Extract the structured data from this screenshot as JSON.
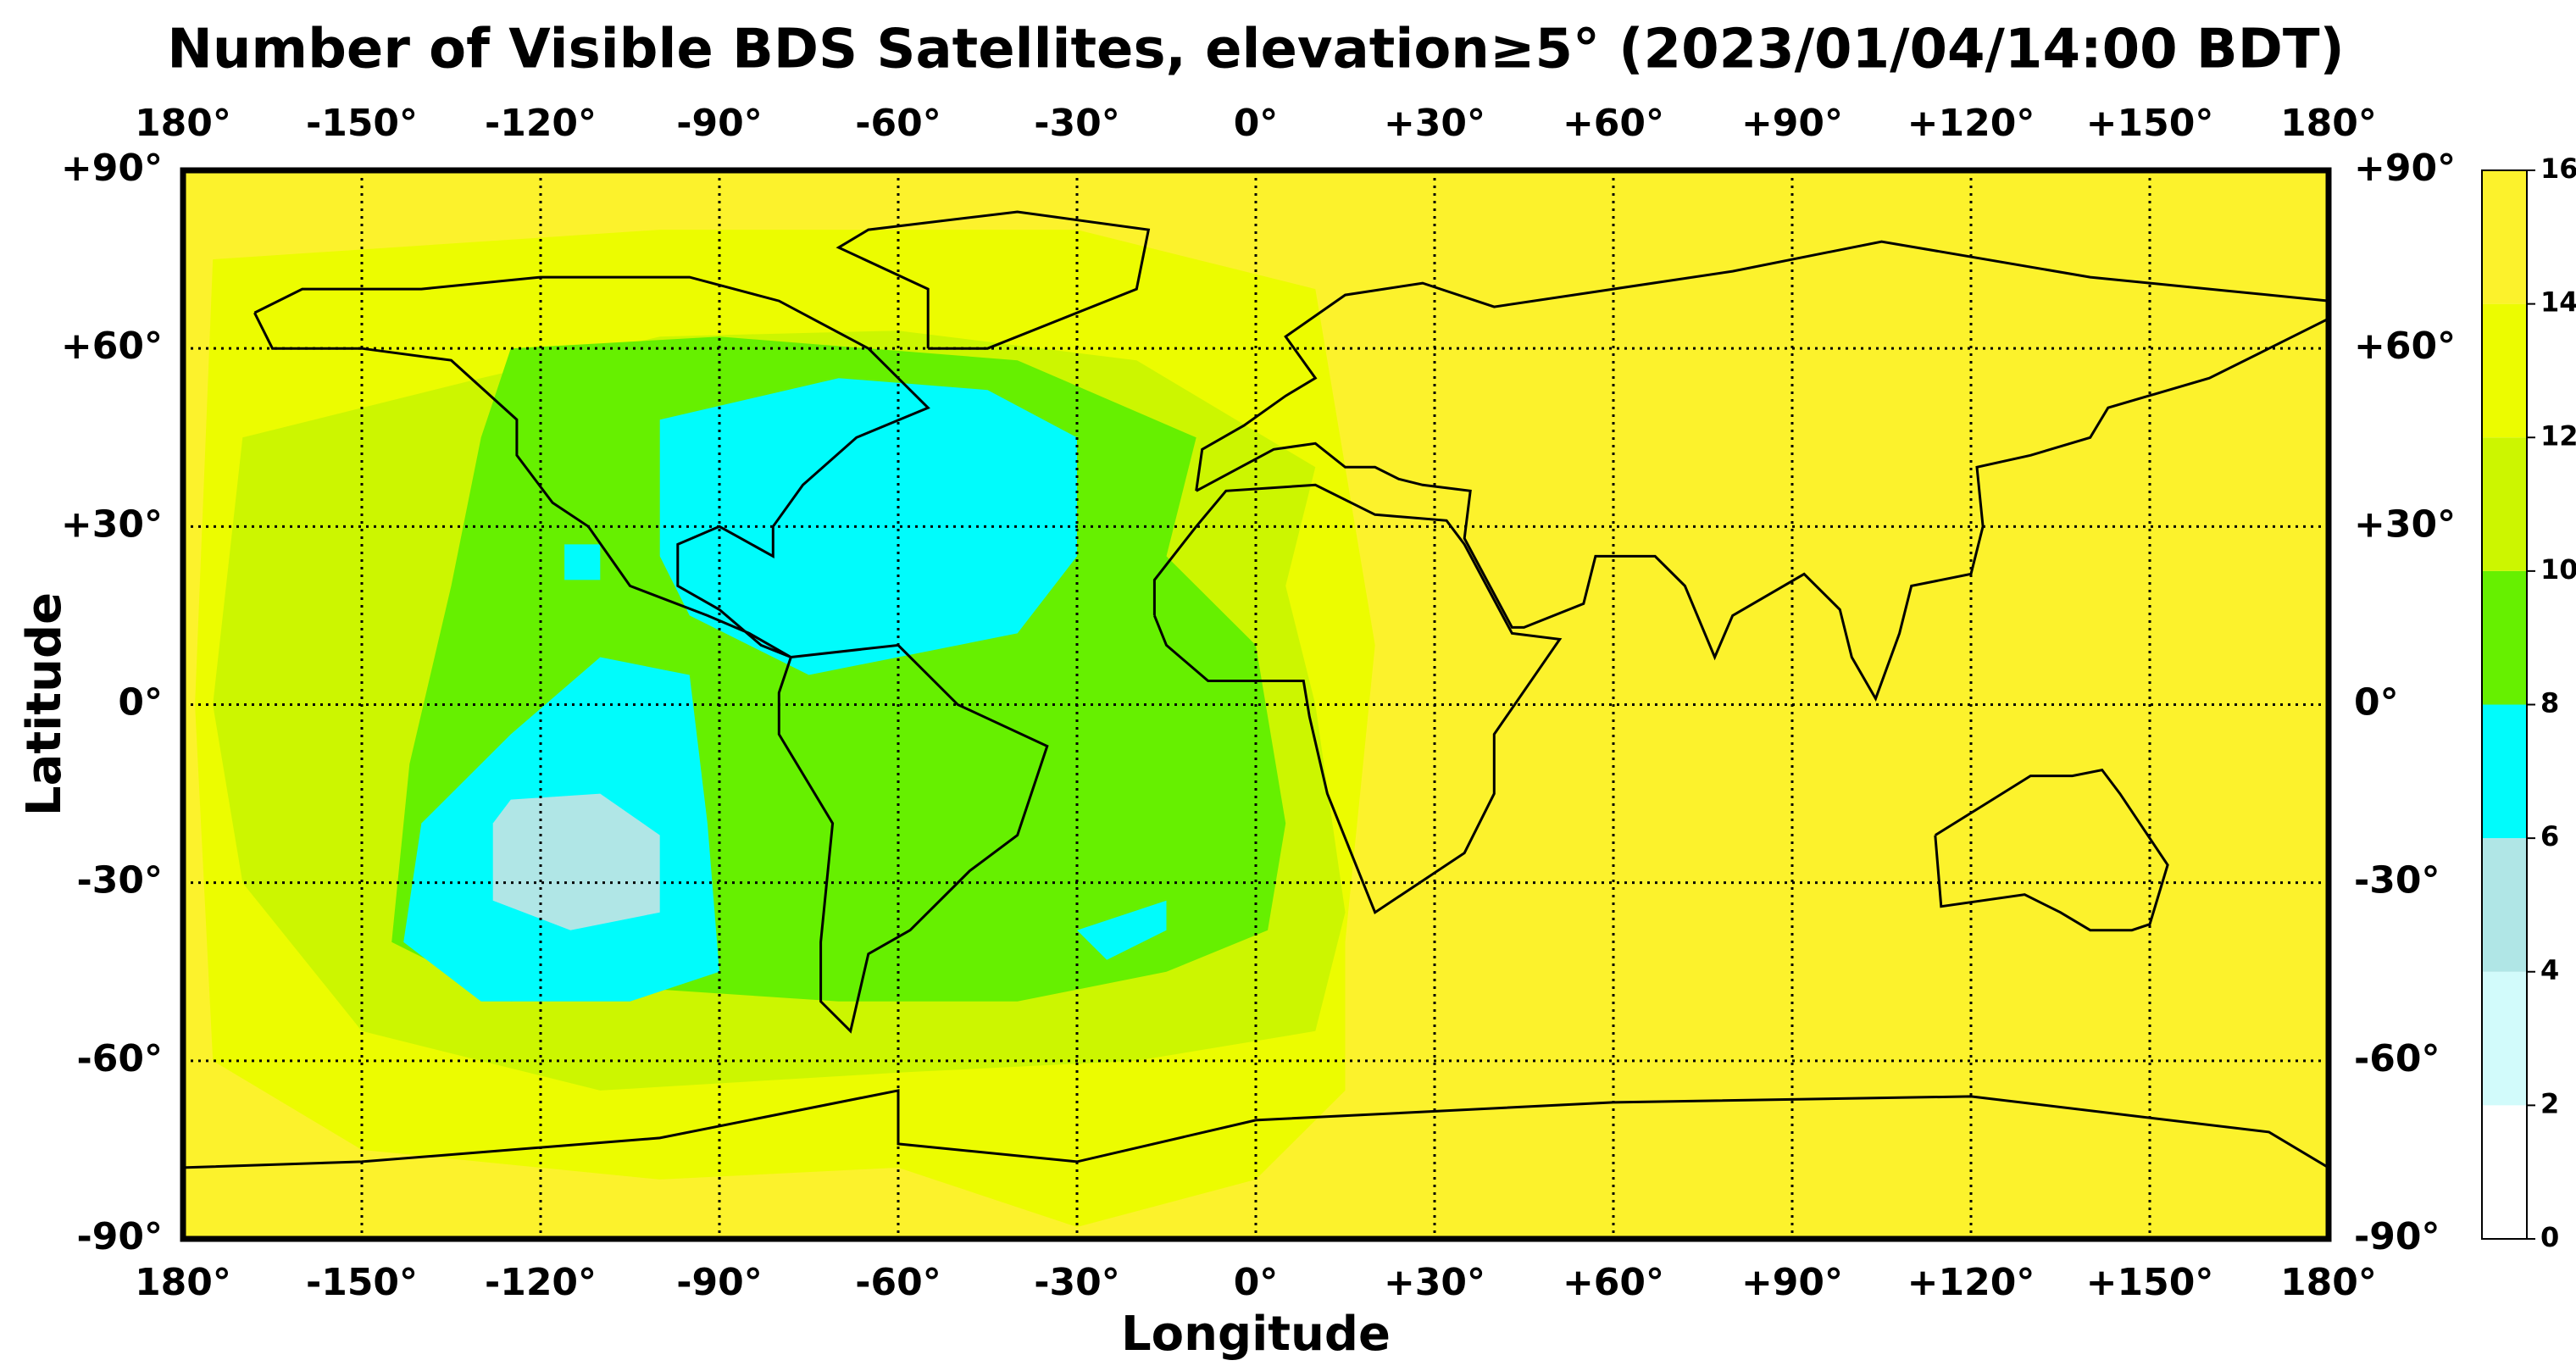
{
  "chart_data": {
    "type": "map",
    "title": "Number of Visible BDS Satellites, elevation≥5° (2023/01/04/14:00 BDT)",
    "xlabel": "Longitude",
    "ylabel": "Latitude",
    "xlim": [
      -180,
      180
    ],
    "ylim": [
      -90,
      90
    ],
    "xticks": [
      {
        "value": -180,
        "label": "180°"
      },
      {
        "value": -150,
        "label": "-150°"
      },
      {
        "value": -120,
        "label": "-120°"
      },
      {
        "value": -90,
        "label": "-90°"
      },
      {
        "value": -60,
        "label": "-60°"
      },
      {
        "value": -30,
        "label": "-30°"
      },
      {
        "value": 0,
        "label": "0°"
      },
      {
        "value": 30,
        "label": "+30°"
      },
      {
        "value": 60,
        "label": "+60°"
      },
      {
        "value": 90,
        "label": "+90°"
      },
      {
        "value": 120,
        "label": "+120°"
      },
      {
        "value": 150,
        "label": "+150°"
      },
      {
        "value": 180,
        "label": "180°"
      }
    ],
    "yticks": [
      {
        "value": -90,
        "label": "-90°"
      },
      {
        "value": -60,
        "label": "-60°"
      },
      {
        "value": -30,
        "label": "-30°"
      },
      {
        "value": 0,
        "label": "0°"
      },
      {
        "value": 30,
        "label": "+30°"
      },
      {
        "value": 60,
        "label": "+60°"
      },
      {
        "value": 90,
        "label": "+90°"
      }
    ],
    "grid": true,
    "colorbar": {
      "bounds": [
        0,
        2,
        4,
        6,
        8,
        10,
        12,
        14,
        16
      ],
      "colors": [
        "#ffffff",
        "#d2fbfb",
        "#b0e6e6",
        "#00fcfc",
        "#66f000",
        "#ccf600",
        "#ecfc00",
        "#fcf22c"
      ]
    },
    "background_value": 15,
    "regions": [
      {
        "value": 13,
        "polygon": [
          [
            -175,
            75
          ],
          [
            -100,
            80
          ],
          [
            -30,
            80
          ],
          [
            10,
            70
          ],
          [
            15,
            40
          ],
          [
            20,
            10
          ],
          [
            15,
            -40
          ],
          [
            15,
            -65
          ],
          [
            0,
            -80
          ],
          [
            -30,
            -88
          ],
          [
            -60,
            -78
          ],
          [
            -100,
            -80
          ],
          [
            -150,
            -75
          ],
          [
            -175,
            -60
          ],
          [
            -178,
            0
          ]
        ]
      },
      {
        "value": 11,
        "polygon": [
          [
            -170,
            45
          ],
          [
            -130,
            55
          ],
          [
            -100,
            62
          ],
          [
            -60,
            63
          ],
          [
            -20,
            58
          ],
          [
            10,
            40
          ],
          [
            5,
            20
          ],
          [
            10,
            0
          ],
          [
            15,
            -35
          ],
          [
            10,
            -55
          ],
          [
            -20,
            -60
          ],
          [
            -60,
            -62
          ],
          [
            -110,
            -65
          ],
          [
            -150,
            -55
          ],
          [
            -170,
            -30
          ],
          [
            -175,
            0
          ]
        ]
      },
      {
        "value": 9,
        "polygon": [
          [
            -125,
            60
          ],
          [
            -90,
            62
          ],
          [
            -40,
            58
          ],
          [
            -10,
            45
          ],
          [
            -15,
            25
          ],
          [
            0,
            10
          ],
          [
            5,
            -20
          ],
          [
            2,
            -38
          ],
          [
            -15,
            -45
          ],
          [
            -40,
            -50
          ],
          [
            -70,
            -50
          ],
          [
            -100,
            -48
          ],
          [
            -125,
            -50
          ],
          [
            -145,
            -40
          ],
          [
            -142,
            -10
          ],
          [
            -135,
            20
          ],
          [
            -130,
            45
          ]
        ]
      },
      {
        "value": 7,
        "polygon": [
          [
            -100,
            48
          ],
          [
            -70,
            55
          ],
          [
            -45,
            53
          ],
          [
            -30,
            45
          ],
          [
            -30,
            25
          ],
          [
            -40,
            12
          ],
          [
            -60,
            8
          ],
          [
            -75,
            5
          ],
          [
            -95,
            15
          ],
          [
            -100,
            25
          ]
        ]
      },
      {
        "value": 7,
        "polygon": [
          [
            -116,
            27
          ],
          [
            -110,
            27
          ],
          [
            -110,
            21
          ],
          [
            -116,
            21
          ]
        ]
      },
      {
        "value": 7,
        "polygon": [
          [
            -110,
            8
          ],
          [
            -95,
            5
          ],
          [
            -92,
            -20
          ],
          [
            -90,
            -45
          ],
          [
            -105,
            -50
          ],
          [
            -130,
            -50
          ],
          [
            -143,
            -40
          ],
          [
            -140,
            -20
          ],
          [
            -125,
            -5
          ]
        ]
      },
      {
        "value": 7,
        "polygon": [
          [
            -25,
            -43
          ],
          [
            -15,
            -38
          ],
          [
            -15,
            -33
          ],
          [
            -30,
            -38
          ]
        ]
      },
      {
        "value": 5,
        "polygon": [
          [
            -125,
            -16
          ],
          [
            -110,
            -15
          ],
          [
            -100,
            -22
          ],
          [
            -100,
            -35
          ],
          [
            -115,
            -38
          ],
          [
            -128,
            -33
          ],
          [
            -128,
            -20
          ]
        ]
      }
    ]
  }
}
